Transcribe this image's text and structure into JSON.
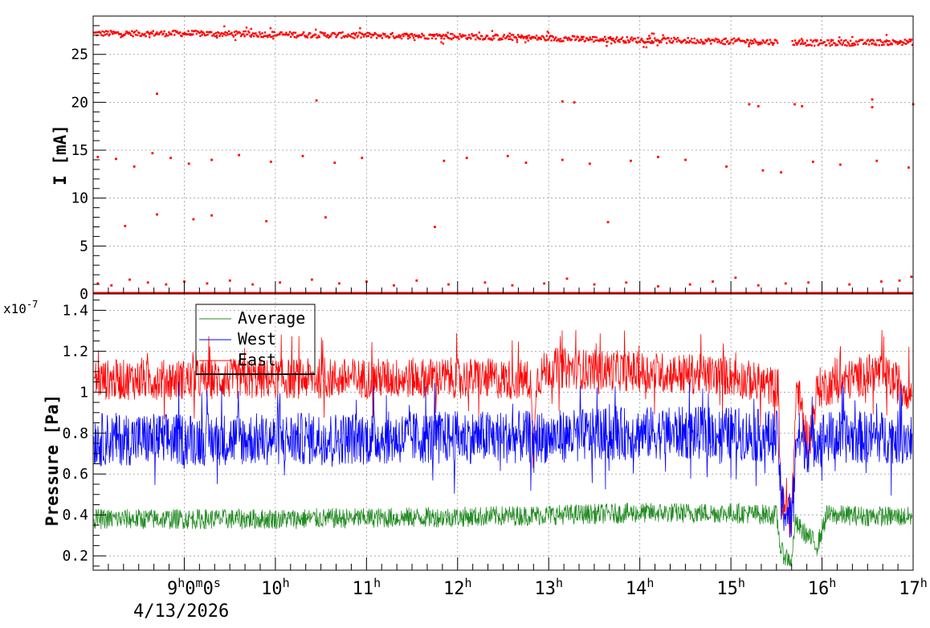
{
  "chart_data": [
    {
      "type": "scatter",
      "ylabel": "I [mA]",
      "ylim": [
        0,
        29
      ],
      "yticks": [
        "0",
        "5",
        "10",
        "15",
        "20",
        "25"
      ],
      "grid": true,
      "color": "#ff0000",
      "x_unit": "hour of day",
      "xlim": [
        8,
        17
      ],
      "main_band": {
        "gap_hours": [
          15.52,
          15.67
        ],
        "level_points": [
          [
            8.0,
            27.2
          ],
          [
            9.0,
            27.2
          ],
          [
            10.0,
            27.1
          ],
          [
            11.0,
            27.0
          ],
          [
            12.0,
            26.9
          ],
          [
            13.0,
            26.7
          ],
          [
            14.0,
            26.5
          ],
          [
            15.0,
            26.4
          ],
          [
            16.0,
            26.2
          ],
          [
            17.0,
            26.3
          ]
        ]
      },
      "outliers": [
        [
          8.05,
          14.3
        ],
        [
          8.25,
          14.1
        ],
        [
          8.45,
          13.3
        ],
        [
          8.65,
          14.7
        ],
        [
          8.85,
          14.2
        ],
        [
          9.05,
          13.6
        ],
        [
          9.3,
          14.0
        ],
        [
          9.6,
          14.5
        ],
        [
          9.95,
          13.8
        ],
        [
          10.3,
          14.4
        ],
        [
          10.65,
          13.7
        ],
        [
          10.95,
          14.2
        ],
        [
          11.85,
          13.9
        ],
        [
          12.1,
          14.2
        ],
        [
          12.55,
          14.4
        ],
        [
          12.75,
          13.7
        ],
        [
          13.15,
          14.0
        ],
        [
          13.45,
          13.6
        ],
        [
          13.9,
          13.9
        ],
        [
          14.2,
          14.3
        ],
        [
          14.5,
          14.0
        ],
        [
          14.95,
          13.3
        ],
        [
          15.35,
          12.9
        ],
        [
          15.55,
          12.7
        ],
        [
          15.9,
          13.8
        ],
        [
          16.2,
          13.5
        ],
        [
          16.6,
          13.9
        ],
        [
          16.95,
          13.2
        ],
        [
          8.7,
          20.9
        ],
        [
          10.45,
          20.2
        ],
        [
          13.15,
          20.1
        ],
        [
          13.28,
          20.0
        ],
        [
          15.2,
          19.8
        ],
        [
          15.3,
          19.6
        ],
        [
          15.7,
          19.8
        ],
        [
          15.78,
          19.6
        ],
        [
          16.55,
          20.3
        ],
        [
          16.55,
          19.5
        ],
        [
          17.0,
          19.8
        ],
        [
          8.35,
          7.1
        ],
        [
          8.7,
          8.3
        ],
        [
          9.1,
          7.8
        ],
        [
          9.3,
          8.2
        ],
        [
          9.9,
          7.6
        ],
        [
          10.55,
          8.0
        ],
        [
          11.75,
          7.0
        ],
        [
          13.65,
          7.5
        ],
        [
          8.05,
          1.1
        ],
        [
          8.2,
          0.9
        ],
        [
          8.4,
          1.5
        ],
        [
          8.6,
          1.2
        ],
        [
          8.8,
          1.0
        ],
        [
          9.0,
          1.3
        ],
        [
          9.25,
          1.1
        ],
        [
          9.5,
          1.4
        ],
        [
          9.75,
          1.0
        ],
        [
          10.05,
          1.2
        ],
        [
          10.4,
          1.5
        ],
        [
          10.7,
          1.1
        ],
        [
          11.0,
          1.3
        ],
        [
          11.3,
          0.9
        ],
        [
          11.55,
          1.4
        ],
        [
          11.9,
          1.0
        ],
        [
          12.3,
          1.2
        ],
        [
          12.6,
          0.9
        ],
        [
          12.95,
          1.1
        ],
        [
          13.2,
          1.6
        ],
        [
          13.5,
          1.0
        ],
        [
          13.85,
          1.2
        ],
        [
          14.2,
          0.8
        ],
        [
          14.55,
          1.0
        ],
        [
          14.8,
          1.3
        ],
        [
          15.05,
          1.7
        ],
        [
          15.3,
          0.9
        ],
        [
          15.6,
          1.1
        ],
        [
          15.85,
          1.2
        ],
        [
          16.3,
          1.0
        ],
        [
          16.65,
          1.3
        ],
        [
          16.85,
          1.4
        ],
        [
          16.98,
          1.8
        ]
      ]
    },
    {
      "type": "line",
      "ylabel": "Pressure [Pa]",
      "y_multiplier_label": "x10",
      "y_multiplier_exp": "-7",
      "ylim": [
        0.13,
        1.48
      ],
      "yticks": [
        "0.2",
        "0.4",
        "0.6",
        "0.8",
        "1",
        "1.2",
        "1.4"
      ],
      "grid": true,
      "legend_position": "top-left",
      "x_unit": "hour of day",
      "xlim": [
        8,
        17
      ],
      "series": [
        {
          "name": "Average",
          "color": "#228b22",
          "centre": [
            [
              8.0,
              0.38
            ],
            [
              10.0,
              0.38
            ],
            [
              12.0,
              0.39
            ],
            [
              13.0,
              0.4
            ],
            [
              14.0,
              0.41
            ],
            [
              15.0,
              0.41
            ],
            [
              15.5,
              0.4
            ],
            [
              15.55,
              0.22
            ],
            [
              15.67,
              0.17
            ],
            [
              15.7,
              0.36
            ],
            [
              15.95,
              0.25
            ],
            [
              16.05,
              0.4
            ],
            [
              17.0,
              0.39
            ]
          ],
          "spread": 0.05
        },
        {
          "name": "West",
          "color": "#0000ff",
          "centre": [
            [
              8.0,
              0.77
            ],
            [
              10.0,
              0.77
            ],
            [
              12.0,
              0.78
            ],
            [
              12.82,
              0.78
            ],
            [
              12.83,
              0.66
            ],
            [
              12.86,
              0.78
            ],
            [
              14.0,
              0.8
            ],
            [
              15.0,
              0.8
            ],
            [
              15.52,
              0.78
            ],
            [
              15.55,
              0.45
            ],
            [
              15.67,
              0.38
            ],
            [
              15.72,
              0.79
            ],
            [
              15.85,
              0.73
            ],
            [
              15.95,
              0.78
            ],
            [
              17.0,
              0.78
            ]
          ],
          "spread": 0.13
        },
        {
          "name": "East",
          "color": "#ff0000",
          "centre": [
            [
              8.0,
              1.06
            ],
            [
              12.0,
              1.07
            ],
            [
              12.8,
              1.06
            ],
            [
              12.83,
              0.68
            ],
            [
              12.86,
              1.06
            ],
            [
              13.0,
              1.12
            ],
            [
              14.0,
              1.1
            ],
            [
              15.0,
              1.08
            ],
            [
              15.52,
              1.02
            ],
            [
              15.55,
              0.45
            ],
            [
              15.67,
              0.4
            ],
            [
              15.72,
              1.04
            ],
            [
              15.85,
              0.74
            ],
            [
              15.95,
              1.02
            ],
            [
              16.3,
              1.06
            ],
            [
              16.6,
              1.1
            ],
            [
              17.0,
              1.0
            ]
          ],
          "spread": 0.1
        }
      ]
    }
  ],
  "x_axis": {
    "origin_label": {
      "h": "9",
      "m": "0",
      "s": "0",
      "h_unit": "h",
      "m_unit": "m",
      "s_unit": "s"
    },
    "date_label": "4/13/2026",
    "hour_labels": [
      {
        "hour": 10,
        "text": "10",
        "unit": "h"
      },
      {
        "hour": 11,
        "text": "11",
        "unit": "h"
      },
      {
        "hour": 12,
        "text": "12",
        "unit": "h"
      },
      {
        "hour": 13,
        "text": "13",
        "unit": "h"
      },
      {
        "hour": 14,
        "text": "14",
        "unit": "h"
      },
      {
        "hour": 15,
        "text": "15",
        "unit": "h"
      },
      {
        "hour": 16,
        "text": "16",
        "unit": "h"
      },
      {
        "hour": 17,
        "text": "17",
        "unit": "h"
      }
    ]
  }
}
